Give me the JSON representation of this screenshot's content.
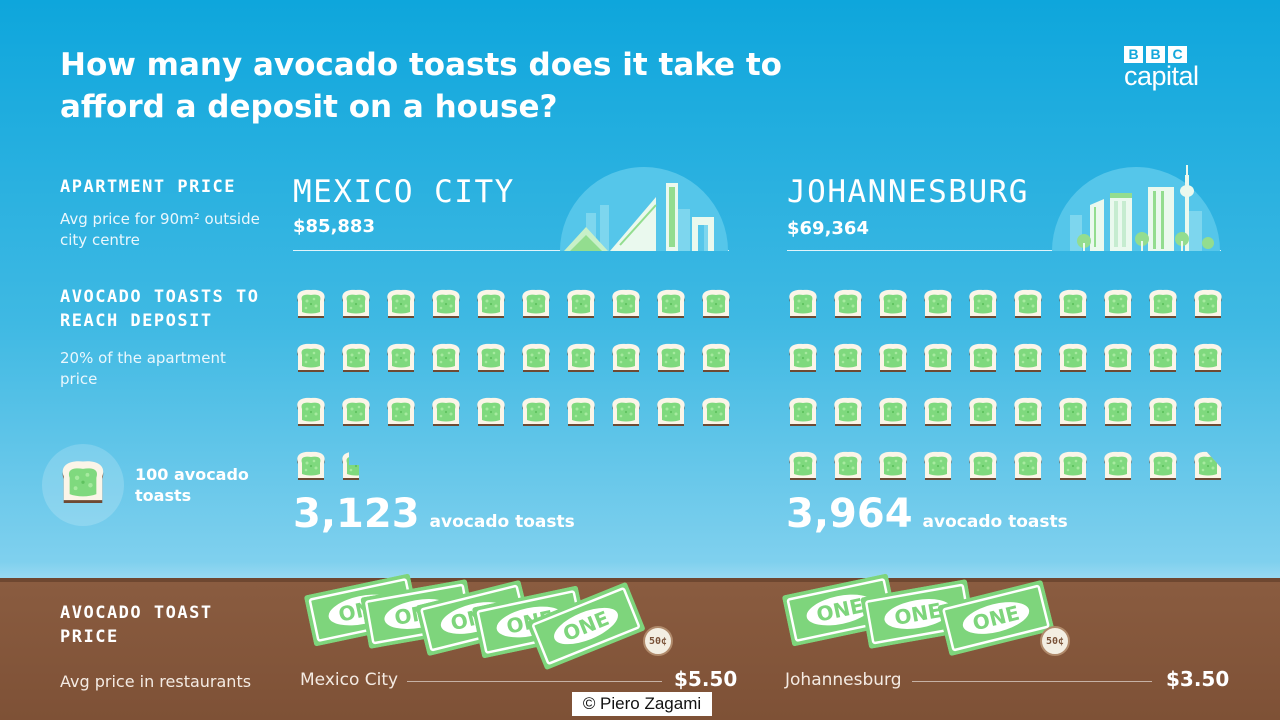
{
  "title": "How many avocado toasts does it take to afford a deposit on a house?",
  "logo": {
    "letters": [
      "B",
      "B",
      "C"
    ],
    "word": "capital"
  },
  "sections": {
    "apartment": {
      "heading": "APARTMENT PRICE",
      "sub": "Avg price for 90m² outside city centre"
    },
    "toasts": {
      "heading": "AVOCADO TOASTS TO REACH DEPOSIT",
      "sub": "20% of the apartment price"
    },
    "toast_price": {
      "heading": "AVOCADO TOAST PRICE",
      "sub": "Avg price in restaurants"
    }
  },
  "legend": {
    "label": "100 avocado toasts",
    "icon": "avocado-toast-icon",
    "toasts_per_icon": 100
  },
  "cities": [
    {
      "name": "MEXICO CITY",
      "apartment_price": "$85,883",
      "toast_count": "3,123",
      "toast_count_value": 3123,
      "toast_unit": "avocado toasts",
      "price_label": "Mexico City",
      "toast_price": "$5.50",
      "bill_label": "ONE",
      "bill_count": 5,
      "coin_label": "50¢"
    },
    {
      "name": "JOHANNESBURG",
      "apartment_price": "$69,364",
      "toast_count": "3,964",
      "toast_count_value": 3964,
      "toast_unit": "avocado toasts",
      "price_label": "Johannesburg",
      "toast_price": "$3.50",
      "bill_label": "ONE",
      "bill_count": 3,
      "coin_label": "50¢"
    }
  ],
  "credit": "© Piero Zagami",
  "colors": {
    "sky_top": "#0ea6dc",
    "ground": "#8a5c40",
    "avocado": "#7fd97e",
    "bread": "#fbf5e8",
    "crust": "#6e4a34",
    "bill": "#7ed57c"
  }
}
